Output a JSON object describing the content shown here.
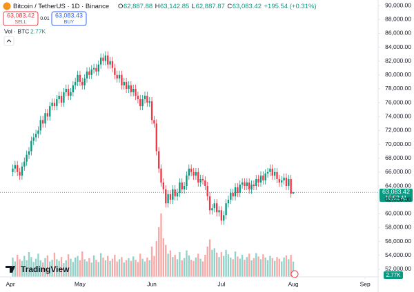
{
  "header": {
    "symbol": "Bitcoin / TetherUS · 1D · Binance",
    "ohlc": [
      {
        "label": "O",
        "value": "62,887.88"
      },
      {
        "label": "H",
        "value": "63,142.85"
      },
      {
        "label": "L",
        "value": "62,887.87"
      },
      {
        "label": "C",
        "value": "63,083.42"
      }
    ],
    "change": "+195.54 (+0.31%)",
    "sell": {
      "price": "63,083.42",
      "label": "SELL"
    },
    "spread": "0.01",
    "buy": {
      "price": "63,083.43",
      "label": "BUY"
    },
    "volume_label": "Vol · BTC",
    "volume_value": "2.77K"
  },
  "logo": "TradingView",
  "price_label": {
    "price": "63,083.42",
    "countdown": "16:52:41"
  },
  "volume_axis_label": "2.77K",
  "chart_data": {
    "type": "candlestick",
    "up_color": "#089981",
    "down_color": "#f23645",
    "volume_up_color": "#92d2c8",
    "volume_down_color": "#f7a9a7",
    "xlim": [
      -5.5,
      157.6
    ],
    "xticks": [
      {
        "value": -1,
        "label": "Apr"
      },
      {
        "value": 29,
        "label": "May"
      },
      {
        "value": 60,
        "label": "Jun"
      },
      {
        "value": 90,
        "label": "Jul"
      },
      {
        "value": 121,
        "label": "Aug"
      },
      {
        "value": 152,
        "label": "Sep"
      }
    ],
    "ylim": [
      50900,
      90800
    ],
    "yticks": [
      {
        "value": 52000,
        "label": "52,000.00"
      },
      {
        "value": 54000,
        "label": "54,000.00"
      },
      {
        "value": 56000,
        "label": "56,000.00"
      },
      {
        "value": 58000,
        "label": "58,000.00"
      },
      {
        "value": 60000,
        "label": "60,000.00"
      },
      {
        "value": 62000,
        "label": "62,000.00"
      },
      {
        "value": 64000,
        "label": "64,000.00"
      },
      {
        "value": 66000,
        "label": "66,000.00"
      },
      {
        "value": 68000,
        "label": "68,000.00"
      },
      {
        "value": 70000,
        "label": "70,000.00"
      },
      {
        "value": 72000,
        "label": "72,000.00"
      },
      {
        "value": 74000,
        "label": "74,000.00"
      },
      {
        "value": 76000,
        "label": "76,000.00"
      },
      {
        "value": 78000,
        "label": "78,000.00"
      },
      {
        "value": 80000,
        "label": "80,000.00"
      },
      {
        "value": 82000,
        "label": "82,000.00"
      },
      {
        "value": 84000,
        "label": "84,000.00"
      },
      {
        "value": 86000,
        "label": "86,000.00"
      },
      {
        "value": 88000,
        "label": "88,000.00"
      },
      {
        "value": 90000,
        "label": "90,000.00"
      }
    ],
    "volume_ylim": [
      0,
      12.5
    ],
    "candles": [
      [
        66000,
        67100,
        65400,
        66500
      ],
      [
        66500,
        67600,
        65900,
        67000
      ],
      [
        67000,
        67600,
        65400,
        66000
      ],
      [
        66000,
        66600,
        64900,
        65500
      ],
      [
        65500,
        67400,
        64900,
        66800
      ],
      [
        66800,
        68100,
        66200,
        67500
      ],
      [
        67500,
        69100,
        66900,
        68500
      ],
      [
        68500,
        69600,
        67900,
        69000
      ],
      [
        69000,
        71100,
        68400,
        70500
      ],
      [
        70500,
        71600,
        69900,
        71000
      ],
      [
        71000,
        72100,
        70400,
        71500
      ],
      [
        71500,
        72600,
        70900,
        72000
      ],
      [
        72000,
        74100,
        71400,
        73500
      ],
      [
        73500,
        74100,
        72400,
        73000
      ],
      [
        73000,
        75100,
        72400,
        74500
      ],
      [
        74500,
        75100,
        73400,
        74000
      ],
      [
        74000,
        76100,
        73400,
        75500
      ],
      [
        75500,
        76600,
        74900,
        76000
      ],
      [
        76000,
        76600,
        74900,
        75500
      ],
      [
        75500,
        77100,
        74900,
        76500
      ],
      [
        76500,
        77600,
        75900,
        77000
      ],
      [
        77000,
        77600,
        75400,
        76000
      ],
      [
        76000,
        78100,
        75400,
        77500
      ],
      [
        77500,
        78600,
        76900,
        78000
      ],
      [
        78000,
        78600,
        76400,
        77000
      ],
      [
        77000,
        78100,
        76400,
        77500
      ],
      [
        77500,
        79100,
        76900,
        78500
      ],
      [
        78500,
        79600,
        77900,
        79000
      ],
      [
        79000,
        80600,
        78400,
        80000
      ],
      [
        80000,
        80600,
        78400,
        79000
      ],
      [
        79000,
        79600,
        77900,
        78500
      ],
      [
        78500,
        80100,
        77900,
        79500
      ],
      [
        79500,
        81100,
        78900,
        80500
      ],
      [
        80500,
        81100,
        79400,
        80000
      ],
      [
        80000,
        81400,
        79400,
        80800
      ],
      [
        80800,
        81600,
        80200,
        81000
      ],
      [
        81000,
        81600,
        79900,
        80500
      ],
      [
        80500,
        82100,
        79900,
        81500
      ],
      [
        81500,
        83100,
        80900,
        82500
      ],
      [
        82500,
        83100,
        81400,
        82000
      ],
      [
        82000,
        83400,
        81400,
        82800
      ],
      [
        82800,
        83400,
        80900,
        81500
      ],
      [
        81500,
        82600,
        80900,
        82000
      ],
      [
        82000,
        82600,
        80400,
        81000
      ],
      [
        81000,
        81600,
        79400,
        80000
      ],
      [
        80000,
        80600,
        78900,
        79500
      ],
      [
        79500,
        80600,
        78900,
        80000
      ],
      [
        80000,
        80600,
        77900,
        78500
      ],
      [
        78500,
        79600,
        77900,
        79000
      ],
      [
        79000,
        79600,
        77400,
        78000
      ],
      [
        78000,
        79100,
        77400,
        78500
      ],
      [
        78500,
        79100,
        76900,
        77500
      ],
      [
        77500,
        78600,
        76900,
        78000
      ],
      [
        78000,
        78600,
        76400,
        77000
      ],
      [
        77000,
        77600,
        75900,
        76500
      ],
      [
        76500,
        77100,
        74900,
        75500
      ],
      [
        75500,
        77100,
        74900,
        76500
      ],
      [
        76500,
        77600,
        75900,
        77000
      ],
      [
        77000,
        77600,
        75400,
        76000
      ],
      [
        76000,
        76800,
        75400,
        76200
      ],
      [
        76200,
        76800,
        72900,
        73500
      ],
      [
        73500,
        74100,
        72400,
        73000
      ],
      [
        73000,
        73600,
        68400,
        69000
      ],
      [
        69000,
        69600,
        65900,
        66500
      ],
      [
        66500,
        67100,
        63900,
        64500
      ],
      [
        64500,
        65100,
        62900,
        63500
      ],
      [
        63500,
        64100,
        60900,
        61500
      ],
      [
        61500,
        63400,
        60900,
        62800
      ],
      [
        62800,
        63400,
        61400,
        62000
      ],
      [
        62000,
        64100,
        61400,
        63500
      ],
      [
        63500,
        64100,
        61900,
        62500
      ],
      [
        62500,
        63600,
        61900,
        63000
      ],
      [
        63000,
        65100,
        62400,
        64500
      ],
      [
        64500,
        65100,
        62900,
        63500
      ],
      [
        63500,
        64600,
        62900,
        64000
      ],
      [
        64000,
        66100,
        63400,
        65500
      ],
      [
        65500,
        67100,
        64900,
        66500
      ],
      [
        66500,
        67100,
        65400,
        66000
      ],
      [
        66000,
        66600,
        64900,
        65500
      ],
      [
        65500,
        66600,
        64900,
        66000
      ],
      [
        66000,
        66600,
        63900,
        64500
      ],
      [
        64500,
        65600,
        63900,
        65000
      ],
      [
        65000,
        65600,
        64200,
        64800
      ],
      [
        64800,
        65400,
        63400,
        64000
      ],
      [
        64000,
        64600,
        61900,
        62500
      ],
      [
        62500,
        63100,
        59900,
        60500
      ],
      [
        60500,
        61400,
        59900,
        60800
      ],
      [
        60800,
        62100,
        60200,
        61500
      ],
      [
        61500,
        62100,
        59600,
        60200
      ],
      [
        60200,
        61100,
        59600,
        60500
      ],
      [
        60500,
        61100,
        58400,
        59000
      ],
      [
        59000,
        60400,
        58400,
        59800
      ],
      [
        59800,
        62100,
        59200,
        61500
      ],
      [
        61500,
        62600,
        60900,
        62000
      ],
      [
        62000,
        63600,
        61400,
        63000
      ],
      [
        63000,
        63600,
        61900,
        62500
      ],
      [
        62500,
        64400,
        61900,
        63800
      ],
      [
        63800,
        64400,
        62400,
        63000
      ],
      [
        63000,
        64800,
        62400,
        64200
      ],
      [
        64200,
        65100,
        63600,
        64500
      ],
      [
        64500,
        65100,
        63400,
        64000
      ],
      [
        64000,
        65100,
        63400,
        64500
      ],
      [
        64500,
        65100,
        62900,
        63500
      ],
      [
        63500,
        64800,
        62900,
        64200
      ],
      [
        64200,
        64800,
        63400,
        64000
      ],
      [
        64000,
        65600,
        63400,
        65000
      ],
      [
        65000,
        65600,
        63900,
        64500
      ],
      [
        64500,
        66100,
        63900,
        65500
      ],
      [
        65500,
        66100,
        64200,
        64800
      ],
      [
        64800,
        66400,
        64200,
        65800
      ],
      [
        65800,
        66600,
        65200,
        66000
      ],
      [
        66000,
        67100,
        65400,
        66500
      ],
      [
        66500,
        67100,
        64900,
        65500
      ],
      [
        65500,
        66600,
        64900,
        66000
      ],
      [
        66000,
        66600,
        64400,
        65000
      ],
      [
        65000,
        65600,
        63900,
        64500
      ],
      [
        64500,
        65400,
        63900,
        64800
      ],
      [
        64800,
        65800,
        64200,
        65200
      ],
      [
        65200,
        65800,
        63400,
        64000
      ],
      [
        64000,
        65600,
        63400,
        65000
      ],
      [
        65000,
        65600,
        62300,
        62887.88
      ],
      [
        62887.88,
        63142.85,
        62887.87,
        63083.42
      ]
    ],
    "volume": [
      3.5,
      2.8,
      4.0,
      3.2,
      2.9,
      3.8,
      3.0,
      4.5,
      3.6,
      2.7,
      3.3,
      4.2,
      3.0,
      2.6,
      3.4,
      3.9,
      2.8,
      3.1,
      4.4,
      3.2,
      2.9,
      3.6,
      2.5,
      3.0,
      4.1,
      3.3,
      2.7,
      3.5,
      3.8,
      3.0,
      4.6,
      3.2,
      2.8,
      3.4,
      2.6,
      3.9,
      3.1,
      2.7,
      4.3,
      3.5,
      3.0,
      3.8,
      2.9,
      3.3,
      4.0,
      2.8,
      3.2,
      3.6,
      2.6,
      3.0,
      3.4,
      2.9,
      3.7,
      3.1,
      2.7,
      4.2,
      3.3,
      2.8,
      3.5,
      3.0,
      5.5,
      3.8,
      6.5,
      9.0,
      11.5,
      7.0,
      5.8,
      4.2,
      4.8,
      3.6,
      4.0,
      3.2,
      4.5,
      3.0,
      3.4,
      4.8,
      3.9,
      3.1,
      2.9,
      3.5,
      4.2,
      3.3,
      2.8,
      4.0,
      5.5,
      6.8,
      4.9,
      5.2,
      4.4,
      3.6,
      4.5,
      3.8,
      4.9,
      4.1,
      3.5,
      3.2,
      4.6,
      3.7,
      3.3,
      4.0,
      3.1,
      3.6,
      4.2,
      3.0,
      3.4,
      4.3,
      3.7,
      3.2,
      4.1,
      3.5,
      3.0,
      3.8,
      3.4,
      2.9,
      3.6,
      3.3,
      2.8,
      3.5,
      3.9,
      3.2,
      4.0,
      2.77
    ]
  }
}
